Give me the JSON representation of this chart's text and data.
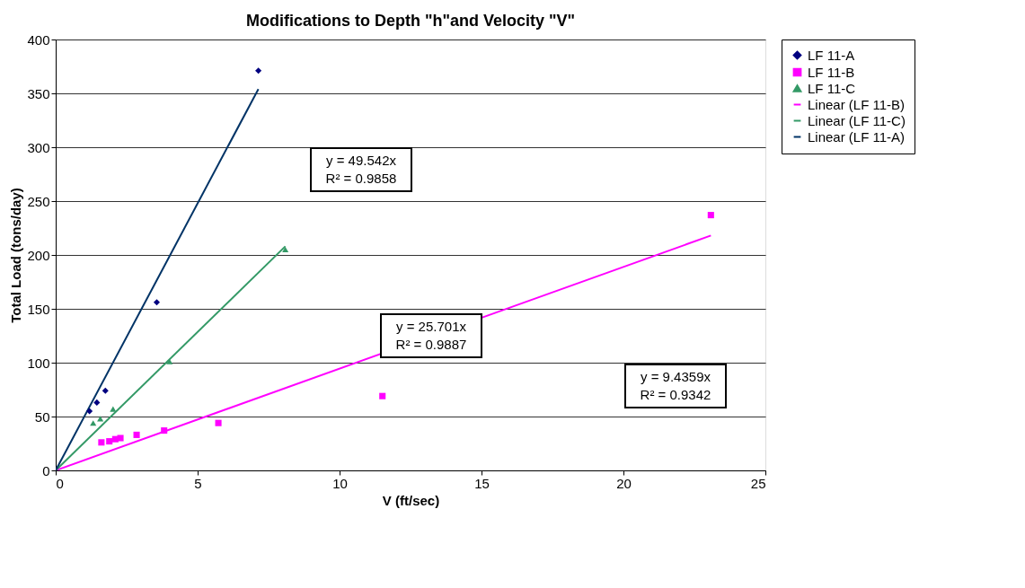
{
  "chart_data": {
    "type": "scatter",
    "title": "Modifications to Depth \"h\"and Velocity \"V\"",
    "xlabel": "V (ft/sec)",
    "ylabel": "Total Load (tons/day)",
    "xlim": [
      0,
      25
    ],
    "xticks": [
      0,
      5,
      10,
      15,
      20,
      25
    ],
    "ylim": [
      0,
      400
    ],
    "yticks": [
      0,
      50,
      100,
      150,
      200,
      250,
      300,
      350,
      400
    ],
    "grid": "y",
    "legend": "right",
    "series": [
      {
        "name": "LF 11-A",
        "marker": "diamond",
        "color": "#000080",
        "x": [
          1.19,
          1.45,
          1.75,
          3.56,
          7.14
        ],
        "values": [
          55,
          63,
          74,
          156,
          371
        ]
      },
      {
        "name": "LF 11-B",
        "marker": "square",
        "color": "#ff00ff",
        "x": [
          1.61,
          1.89,
          2.1,
          2.28,
          2.85,
          3.82,
          5.73,
          11.51,
          23.08
        ],
        "values": [
          26,
          27,
          29,
          30,
          33,
          37,
          44,
          69,
          237
        ]
      },
      {
        "name": "LF 11-C",
        "marker": "triangle",
        "color": "#339966",
        "x": [
          1.32,
          1.57,
          2.02,
          4.01,
          8.09
        ],
        "values": [
          44,
          48,
          57,
          101,
          205
        ]
      },
      {
        "name": "Linear (LF 11-B)",
        "type": "line",
        "color": "#ff00ff",
        "x": [
          0,
          23.08
        ],
        "values": [
          0,
          218
        ]
      },
      {
        "name": "Linear (LF 11-C)",
        "type": "line",
        "color": "#339966",
        "x": [
          0,
          8.09
        ],
        "values": [
          0,
          208
        ]
      },
      {
        "name": "Linear (LF 11-A)",
        "type": "line",
        "color": "#003366",
        "x": [
          0,
          7.14
        ],
        "values": [
          0,
          354
        ]
      }
    ],
    "annotations": [
      "y = 49.542x\nR² = 0.9858",
      "y = 25.701x\nR² = 0.9887",
      "y = 9.4359x\nR² = 0.9342"
    ]
  }
}
